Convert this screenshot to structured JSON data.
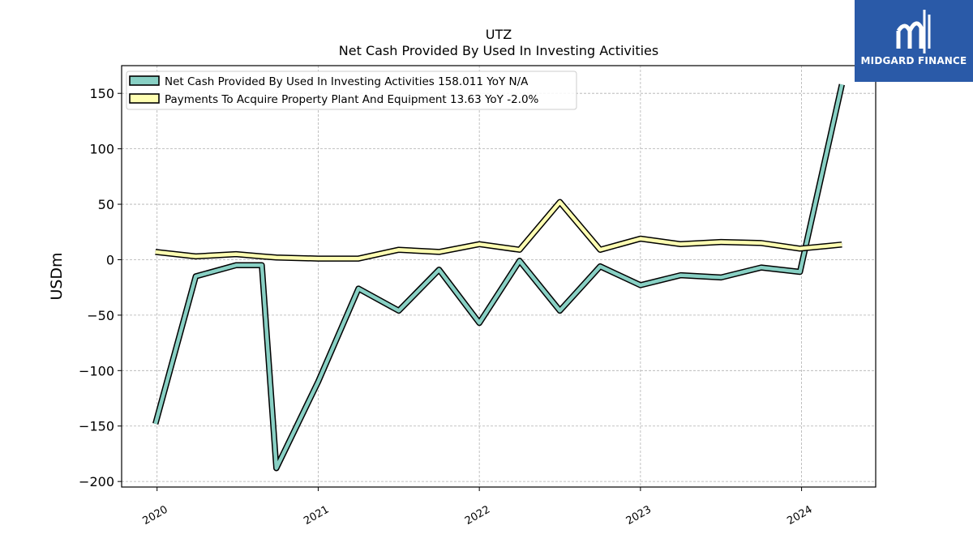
{
  "chart_data": {
    "type": "line",
    "title": "UTZ",
    "subtitle": "Net Cash Provided By Used In Investing Activities",
    "ylabel": "USDm",
    "xlabel": "",
    "ylim": [
      -205,
      175
    ],
    "yticks": [
      150,
      100,
      50,
      0,
      -50,
      -100,
      -150,
      -200
    ],
    "ytick_labels": [
      "150",
      "100",
      "50",
      "0",
      "−50",
      "−100",
      "−150",
      "−200"
    ],
    "xlim": [
      2019.78,
      2024.46
    ],
    "xticks": [
      2020,
      2021,
      2022,
      2023,
      2024
    ],
    "xtick_labels": [
      "2020",
      "2021",
      "2022",
      "2023",
      "2024"
    ],
    "grid": true,
    "legend_position": "top-left",
    "x": [
      2019.99,
      2020.24,
      2020.49,
      2020.65,
      2020.74,
      2021.0,
      2021.25,
      2021.5,
      2021.75,
      2022.0,
      2022.25,
      2022.5,
      2022.75,
      2023.0,
      2023.25,
      2023.5,
      2023.75,
      2023.99,
      2024.25
    ],
    "series": [
      {
        "name": "Net Cash Provided By Used In Investing Activities  158.011 YoY N/A",
        "color": "#88d0c4",
        "values": [
          -148,
          -15,
          -5,
          -5,
          -188,
          -110,
          -26,
          -46,
          -9,
          -57,
          -1,
          -46,
          -6,
          -23,
          -14,
          -16,
          -7,
          -11,
          158
        ]
      },
      {
        "name": "Payments To Acquire Property Plant And Equipment  13.63 YoY -2.0%",
        "color": "#ffffb2",
        "values": [
          7,
          3,
          5,
          3,
          2,
          1,
          1,
          9,
          7,
          14,
          9,
          52,
          9,
          19,
          14,
          16,
          15,
          10,
          13.63
        ]
      }
    ]
  },
  "logo": {
    "text": "MIDGARD FINANCE",
    "background": "#2a5aa8"
  }
}
